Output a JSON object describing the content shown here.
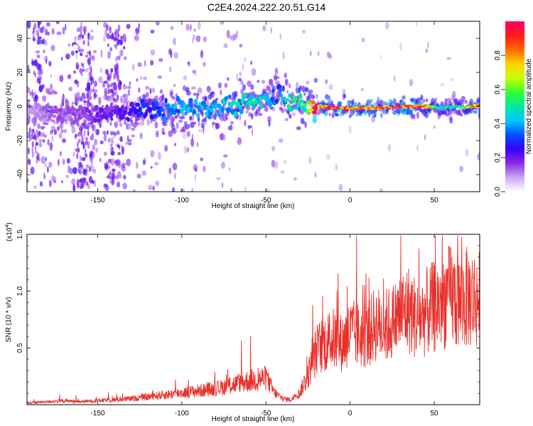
{
  "title": "C2E4.2024.222.20.51.G14",
  "colors": {
    "line": "#e8302a",
    "frame": "#000000",
    "background": "#ffffff"
  },
  "chart_data": [
    {
      "type": "heatmap",
      "xlabel": "Height of straight line (km)",
      "ylabel": "Frequency (Hz)",
      "xlim": [
        -192,
        77
      ],
      "ylim": [
        -50,
        50
      ],
      "xticks": [
        -150,
        -100,
        -50,
        0,
        50
      ],
      "yticks": [
        -40,
        -20,
        0,
        20,
        40
      ],
      "colorbar": {
        "label": "Normalized spectral amplitude",
        "range": [
          0,
          1
        ],
        "ticks": [
          "0.0",
          "0.2",
          "0.4",
          "0.6",
          "0.8"
        ],
        "colormap": [
          "#ffffff",
          "#c9a8f2",
          "#8a2be2",
          "#3b00ff",
          "#0050ff",
          "#00c8ff",
          "#00e8a0",
          "#33ff33",
          "#c8ff00",
          "#ffd200",
          "#ff6a00",
          "#ff1a1a",
          "#ff0066"
        ]
      },
      "ridge": {
        "description_points": [
          {
            "x": -190,
            "y": -4,
            "amp": 0.1
          },
          {
            "x": -175,
            "y": -3,
            "amp": 0.15
          },
          {
            "x": -160,
            "y": -4,
            "amp": 0.15
          },
          {
            "x": -150,
            "y": -5,
            "amp": 0.2
          },
          {
            "x": -140,
            "y": -3,
            "amp": 0.2
          },
          {
            "x": -125,
            "y": -2,
            "amp": 0.3
          },
          {
            "x": -110,
            "y": -2,
            "amp": 0.35
          },
          {
            "x": -95,
            "y": -1,
            "amp": 0.45
          },
          {
            "x": -80,
            "y": 0,
            "amp": 0.45
          },
          {
            "x": -65,
            "y": 1,
            "amp": 0.45
          },
          {
            "x": -55,
            "y": 3,
            "amp": 0.5
          },
          {
            "x": -47,
            "y": 5,
            "amp": 0.4
          },
          {
            "x": -42,
            "y": 9,
            "amp": 0.35
          },
          {
            "x": -37,
            "y": 2,
            "amp": 0.5
          },
          {
            "x": -30,
            "y": 3,
            "amp": 0.55
          },
          {
            "x": -25,
            "y": 1,
            "amp": 0.6
          },
          {
            "x": -20,
            "y": 0,
            "amp": 0.95
          },
          {
            "x": -5,
            "y": -1,
            "amp": 0.95
          },
          {
            "x": 10,
            "y": -1,
            "amp": 0.9
          },
          {
            "x": 30,
            "y": 0,
            "amp": 0.95
          },
          {
            "x": 45,
            "y": 0,
            "amp": 0.85
          },
          {
            "x": 55,
            "y": -1,
            "amp": 0.5
          },
          {
            "x": 65,
            "y": 0,
            "amp": 0.55
          },
          {
            "x": 76,
            "y": 0,
            "amp": 0.9
          }
        ]
      }
    },
    {
      "type": "line",
      "xlabel": "Height of straight line (km)",
      "ylabel": "SNR (10 * v/v)",
      "yscale_label": "(x10",
      "yscale_exp": "4",
      "yscale_suffix": ")",
      "xlim": [
        -192,
        77
      ],
      "ylim": [
        0,
        1.5
      ],
      "xticks": [
        -150,
        -100,
        -50,
        0,
        50
      ],
      "yticks": [
        0.5,
        1.0,
        1.5
      ],
      "ytick_labels": [
        "0.5",
        "1.0",
        "1.5"
      ],
      "series": [
        {
          "x": [
            -190,
            -180,
            -170,
            -160,
            -150,
            -140,
            -130,
            -120,
            -110,
            -100,
            -90,
            -80,
            -70,
            -60,
            -50,
            -45,
            -40,
            -35,
            -30,
            -25,
            -20,
            -15,
            -10,
            -5,
            0,
            5,
            10,
            15,
            20,
            25,
            30,
            35,
            40,
            45,
            50,
            55,
            60,
            65,
            70,
            76
          ],
          "values": [
            0.02,
            0.03,
            0.04,
            0.03,
            0.04,
            0.05,
            0.06,
            0.08,
            0.1,
            0.12,
            0.14,
            0.16,
            0.2,
            0.24,
            0.27,
            0.12,
            0.06,
            0.05,
            0.12,
            0.3,
            0.55,
            0.62,
            0.66,
            0.62,
            0.72,
            0.7,
            0.68,
            0.82,
            0.78,
            0.82,
            0.92,
            0.96,
            0.85,
            0.93,
            0.98,
            1.05,
            1.1,
            1.02,
            1.08,
            1.05
          ]
        }
      ]
    }
  ]
}
